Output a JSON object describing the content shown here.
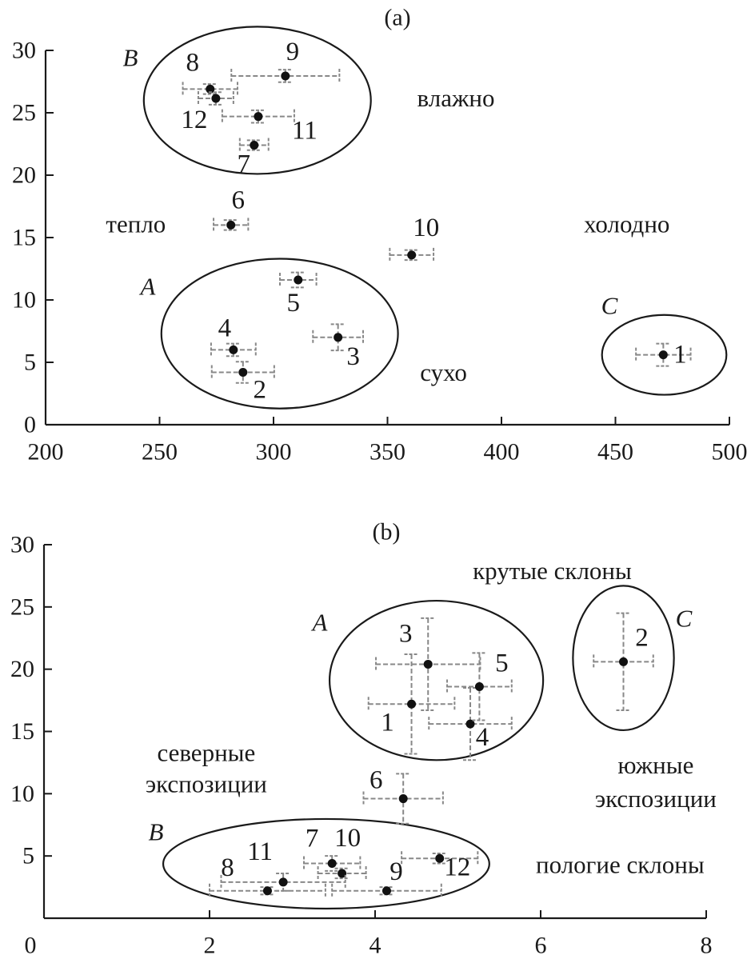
{
  "chart_data": [
    {
      "type": "scatter",
      "title": "(a)",
      "xlim": [
        200,
        500
      ],
      "ylim": [
        0,
        30
      ],
      "xticks": [
        200,
        250,
        300,
        350,
        400,
        450,
        500
      ],
      "yticks": [
        0,
        5,
        10,
        15,
        20,
        25,
        30
      ],
      "grid": false,
      "error_bars": true,
      "points": [
        {
          "label": "1",
          "x": 471,
          "y": 5.6,
          "xerr": 12,
          "yerr": 0.9
        },
        {
          "label": "2",
          "x": 286.6,
          "y": 4.2,
          "xerr": 13.7,
          "yerr": 0.85
        },
        {
          "label": "3",
          "x": 328.3,
          "y": 7.0,
          "xerr": 11,
          "yerr": 1.05
        },
        {
          "label": "4",
          "x": 282.4,
          "y": 6.0,
          "xerr": 9.8,
          "yerr": 0.5
        },
        {
          "label": "5",
          "x": 310.8,
          "y": 11.6,
          "xerr": 8,
          "yerr": 0.6
        },
        {
          "label": "6",
          "x": 281.3,
          "y": 16.0,
          "xerr": 7.6,
          "yerr": 0.4
        },
        {
          "label": "7",
          "x": 291.5,
          "y": 22.4,
          "xerr": 6.3,
          "yerr": 0.4
        },
        {
          "label": "8",
          "x": 272.2,
          "y": 26.9,
          "xerr": 12,
          "yerr": 0.4
        },
        {
          "label": "9",
          "x": 305.2,
          "y": 27.95,
          "xerr": 23.7,
          "yerr": 0.5
        },
        {
          "label": "10",
          "x": 360.6,
          "y": 13.6,
          "xerr": 9.6,
          "yerr": 0.4
        },
        {
          "label": "11",
          "x": 293.3,
          "y": 24.7,
          "xerr": 15.8,
          "yerr": 0.5
        },
        {
          "label": "12",
          "x": 274.7,
          "y": 26.15,
          "xerr": 7.7,
          "yerr": 0.5
        }
      ],
      "groups": [
        {
          "label": "B",
          "cx": 292.9,
          "cy": 26.0,
          "rx": 49.8,
          "ry": 5.9
        },
        {
          "label": "A",
          "cx": 302.7,
          "cy": 7.3,
          "rx": 51.9,
          "ry": 6.0
        },
        {
          "label": "C",
          "cx": 471.4,
          "cy": 5.6,
          "rx": 27.3,
          "ry": 3.2
        }
      ],
      "annotations": [
        {
          "text": "влажно",
          "x": 380,
          "y": 26.2
        },
        {
          "text": "тепло",
          "x": 239.6,
          "y": 16.1
        },
        {
          "text": "холодно",
          "x": 455,
          "y": 16.1
        },
        {
          "text": "сухо",
          "x": 374.6,
          "y": 4.2
        }
      ]
    },
    {
      "type": "scatter",
      "title": "(b)",
      "xlim": [
        0,
        8
      ],
      "ylim": [
        0,
        30
      ],
      "xticks": [
        0,
        2,
        4,
        6,
        8
      ],
      "yticks": [
        5,
        10,
        15,
        20,
        25,
        30
      ],
      "grid": false,
      "error_bars": true,
      "points": [
        {
          "label": "1",
          "x": 4.44,
          "y": 17.2,
          "xerr": 0.52,
          "yerr": 4.0
        },
        {
          "label": "2",
          "x": 7.0,
          "y": 20.6,
          "xerr": 0.36,
          "yerr": 3.9
        },
        {
          "label": "3",
          "x": 4.64,
          "y": 20.4,
          "xerr": 0.63,
          "yerr": 3.7
        },
        {
          "label": "4",
          "x": 5.15,
          "y": 15.6,
          "xerr": 0.5,
          "yerr": 2.9
        },
        {
          "label": "5",
          "x": 5.26,
          "y": 18.6,
          "xerr": 0.39,
          "yerr": 2.7
        },
        {
          "label": "6",
          "x": 4.34,
          "y": 9.6,
          "xerr": 0.48,
          "yerr": 2.0
        },
        {
          "label": "7",
          "x": 3.48,
          "y": 4.4,
          "xerr": 0.34,
          "yerr": 0.6
        },
        {
          "label": "8",
          "x": 2.7,
          "y": 2.2,
          "xerr": 0.7,
          "yerr": 0.3
        },
        {
          "label": "9",
          "x": 4.14,
          "y": 2.2,
          "xerr": 0.66,
          "yerr": 0.3
        },
        {
          "label": "10",
          "x": 3.6,
          "y": 3.6,
          "xerr": 0.29,
          "yerr": 0.4
        },
        {
          "label": "11",
          "x": 2.89,
          "y": 2.9,
          "xerr": 0.75,
          "yerr": 0.7
        },
        {
          "label": "12",
          "x": 4.78,
          "y": 4.8,
          "xerr": 0.46,
          "yerr": 0.4
        }
      ],
      "groups": [
        {
          "label": "A",
          "cx": 4.74,
          "cy": 19.1,
          "rx": 1.29,
          "ry": 6.4
        },
        {
          "label": "C",
          "cx": 7.0,
          "cy": 20.9,
          "rx": 0.61,
          "ry": 5.8
        },
        {
          "label": "B",
          "cx": 3.41,
          "cy": 4.37,
          "rx": 1.97,
          "ry": 3.6
        }
      ],
      "annotations": [
        {
          "text": "крутые склоны",
          "x": 6.14,
          "y": 27.9
        },
        {
          "text": "северные",
          "x": 1.96,
          "y": 13.3
        },
        {
          "text": "экспозиции",
          "x": 1.96,
          "y": 10.8
        },
        {
          "text": "южные",
          "x": 7.39,
          "y": 12.3
        },
        {
          "text": "экспозиции",
          "x": 7.39,
          "y": 9.6
        },
        {
          "text": "пологие склоны",
          "x": 6.96,
          "y": 4.3
        }
      ]
    }
  ]
}
